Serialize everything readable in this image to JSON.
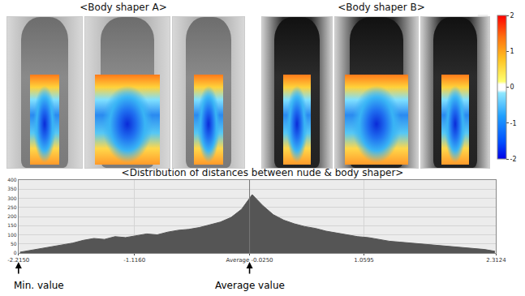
{
  "panels": [
    {
      "title": "<Body shaper A>"
    },
    {
      "title": "<Body shaper B>"
    }
  ],
  "colorbar": {
    "range": [
      -2,
      2
    ],
    "ticks": [
      -2,
      -1,
      0,
      1,
      2
    ]
  },
  "chart_data": {
    "type": "area",
    "title": "<Distribution of distances between nude & body shaper>",
    "x": [
      -2.2,
      -2.1,
      -2.0,
      -1.9,
      -1.8,
      -1.7,
      -1.6,
      -1.5,
      -1.4,
      -1.3,
      -1.2,
      -1.1,
      -1.0,
      -0.9,
      -0.8,
      -0.7,
      -0.6,
      -0.5,
      -0.4,
      -0.3,
      -0.2,
      -0.1,
      0.0,
      0.1,
      0.2,
      0.3,
      0.4,
      0.5,
      0.6,
      0.7,
      0.8,
      0.9,
      1.0,
      1.1,
      1.2,
      1.3,
      1.4,
      1.5,
      1.6,
      1.7,
      1.8,
      1.9,
      2.0,
      2.1,
      2.2,
      2.3
    ],
    "values": [
      5,
      15,
      25,
      35,
      45,
      55,
      70,
      80,
      75,
      90,
      85,
      95,
      105,
      100,
      115,
      125,
      130,
      140,
      155,
      170,
      195,
      240,
      320,
      260,
      210,
      180,
      160,
      145,
      135,
      120,
      110,
      100,
      90,
      85,
      75,
      65,
      60,
      55,
      50,
      45,
      40,
      35,
      30,
      25,
      20,
      10
    ],
    "color": "#555555",
    "xlim": [
      -2.215,
      2.3124
    ],
    "xticks": [
      {
        "value": -2.215,
        "label": "-2.2150"
      },
      {
        "value": -1.116,
        "label": "-1.1160"
      },
      {
        "value": -0.025,
        "label": "Average -0.0250"
      },
      {
        "value": 1.0595,
        "label": "1.0595"
      },
      {
        "value": 2.3124,
        "label": "2.3124"
      }
    ],
    "ylim": [
      0,
      400
    ],
    "yticks": [
      0,
      50,
      100,
      150,
      200,
      250,
      300,
      350,
      400
    ],
    "grid": true,
    "annotations": [
      {
        "text": "Min. value",
        "x": -2.215
      },
      {
        "text": "Average value",
        "x": -0.025
      }
    ]
  }
}
